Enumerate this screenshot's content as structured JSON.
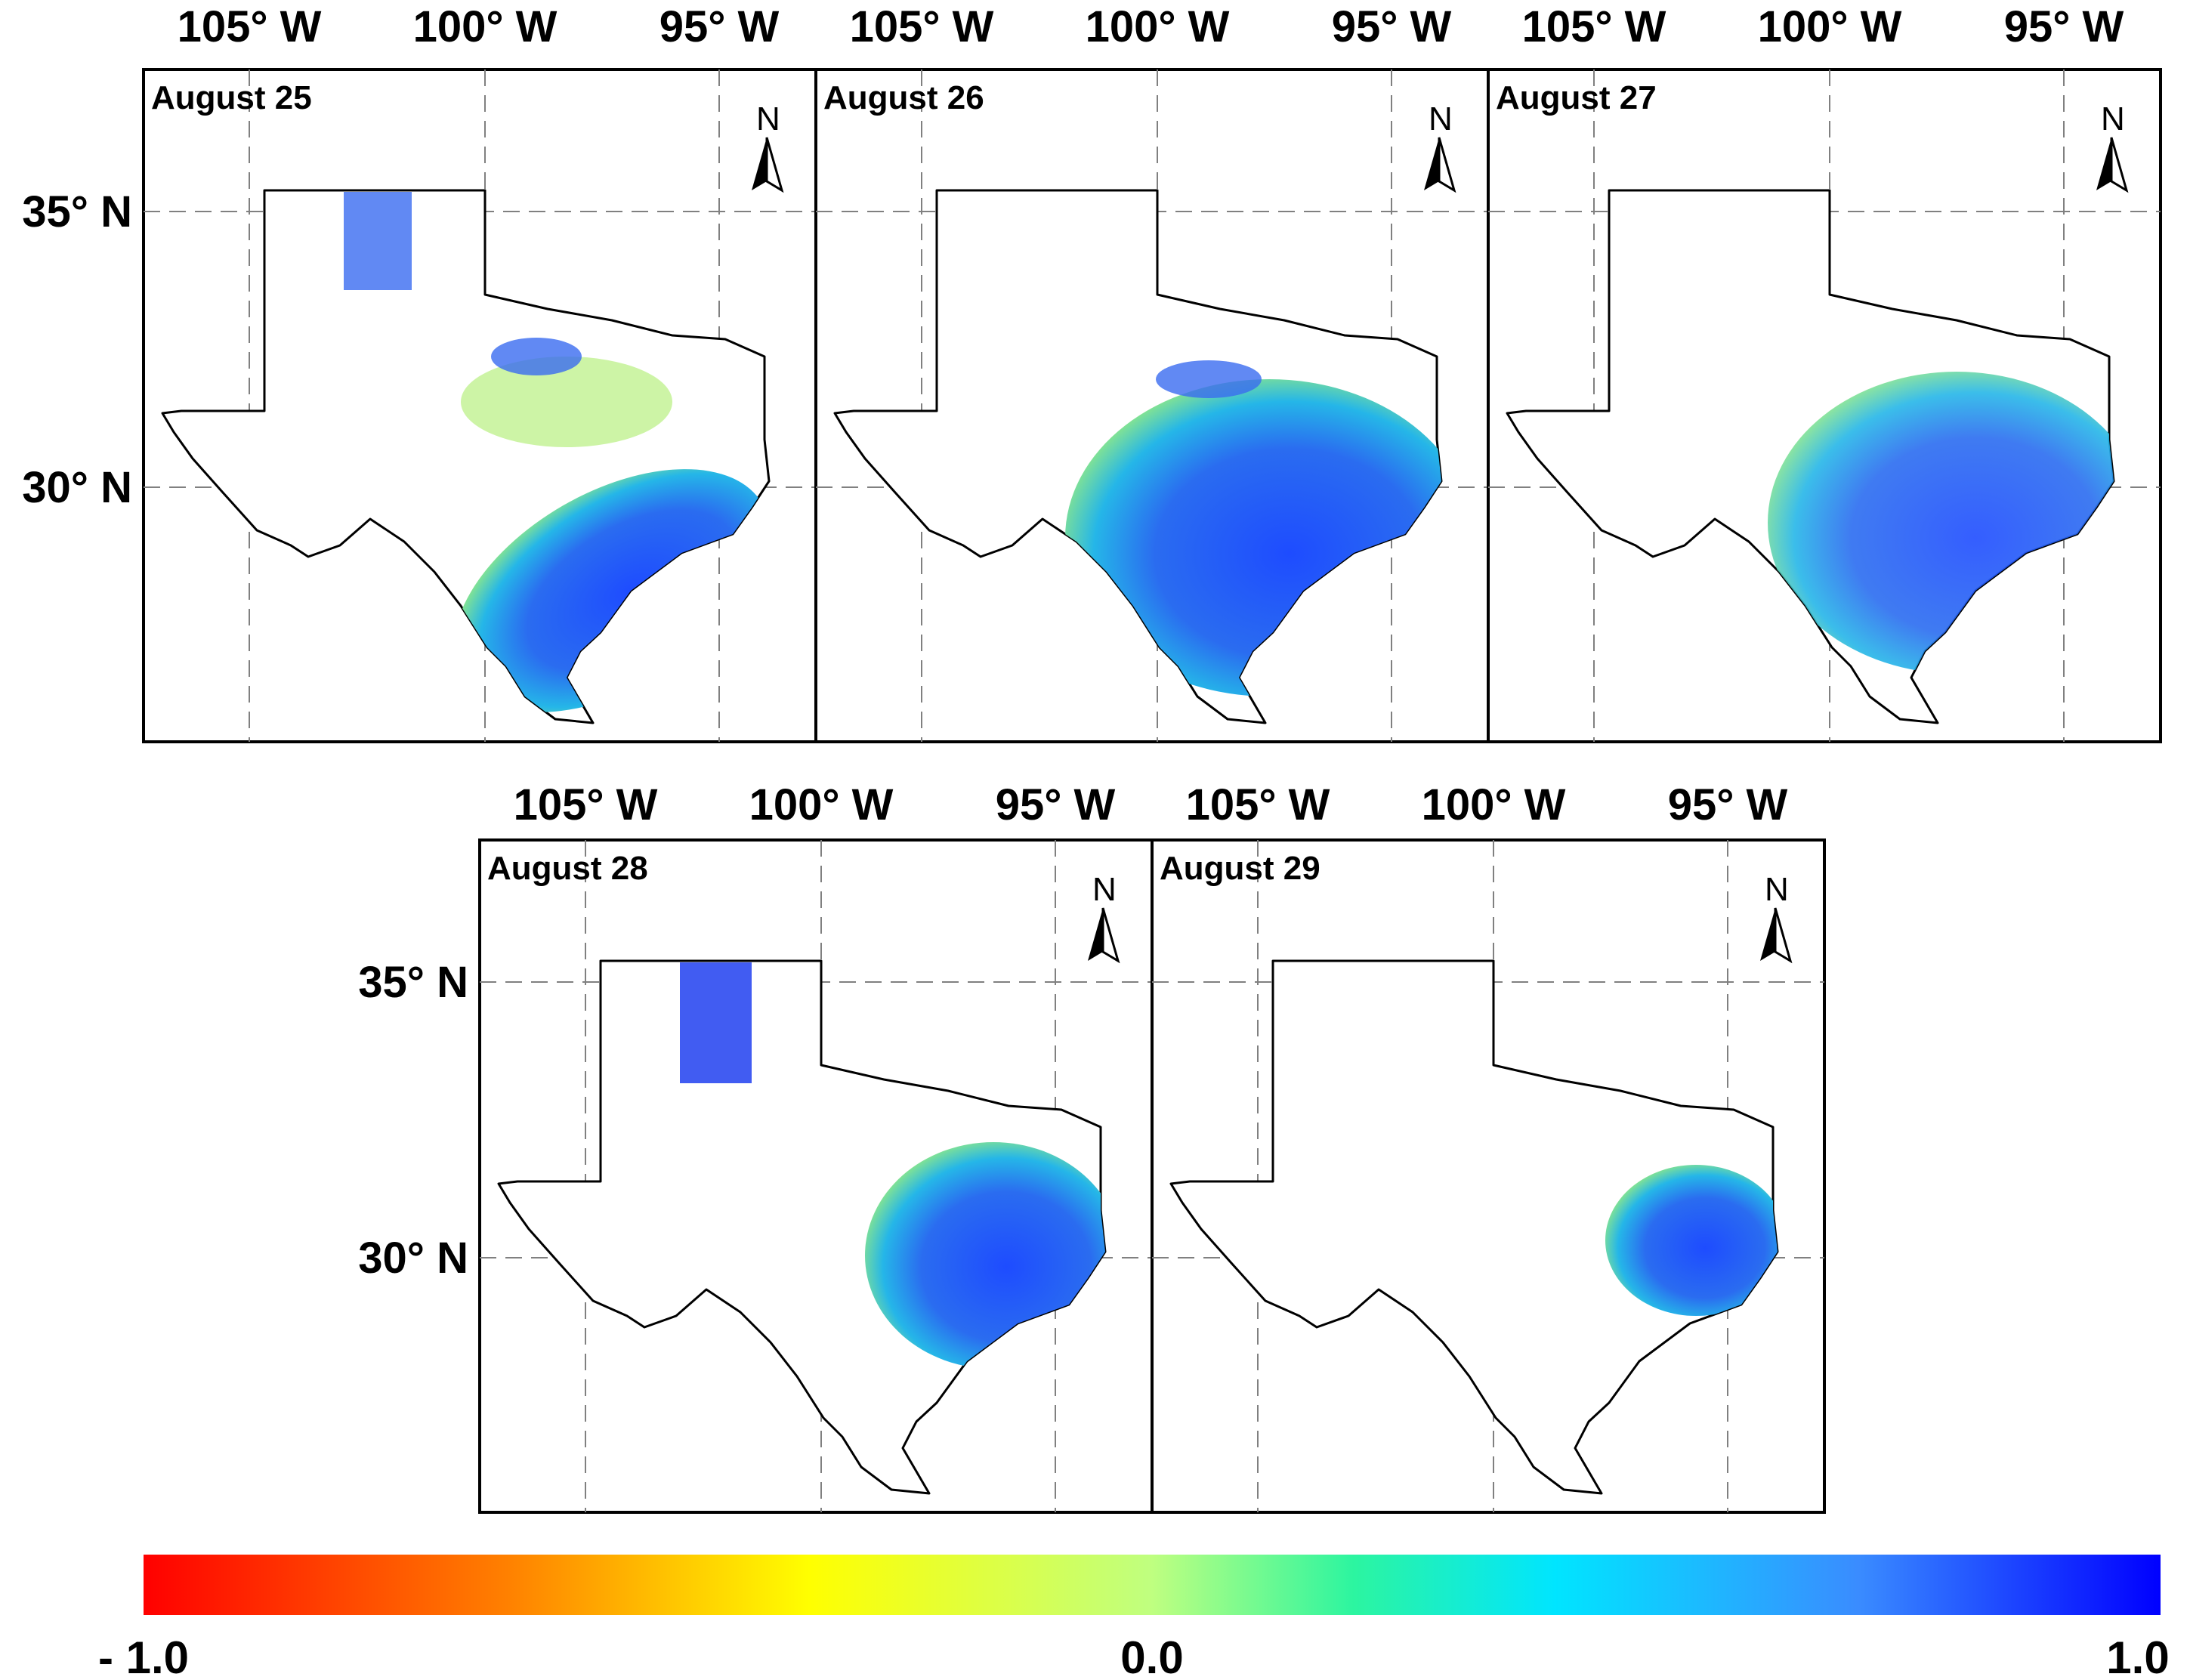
{
  "figure": {
    "longitude_labels": [
      "105° W",
      "100° W",
      "95° W"
    ],
    "latitude_labels": [
      "35° N",
      "30° N"
    ],
    "north_arrow_label": "N",
    "panels": [
      {
        "date": "August 25"
      },
      {
        "date": "August 26"
      },
      {
        "date": "August 27"
      },
      {
        "date": "August 28"
      },
      {
        "date": "August 29"
      }
    ]
  },
  "colorbar": {
    "min_label": "- 1.0",
    "mid_label": "0.0",
    "max_label": "1.0",
    "min": -1.0,
    "max": 1.0,
    "colors": [
      "#ff0000",
      "#ff8000",
      "#ffff00",
      "#bfff80",
      "#2cf5a0",
      "#00e5ff",
      "#3a8cff",
      "#0000ff"
    ]
  }
}
